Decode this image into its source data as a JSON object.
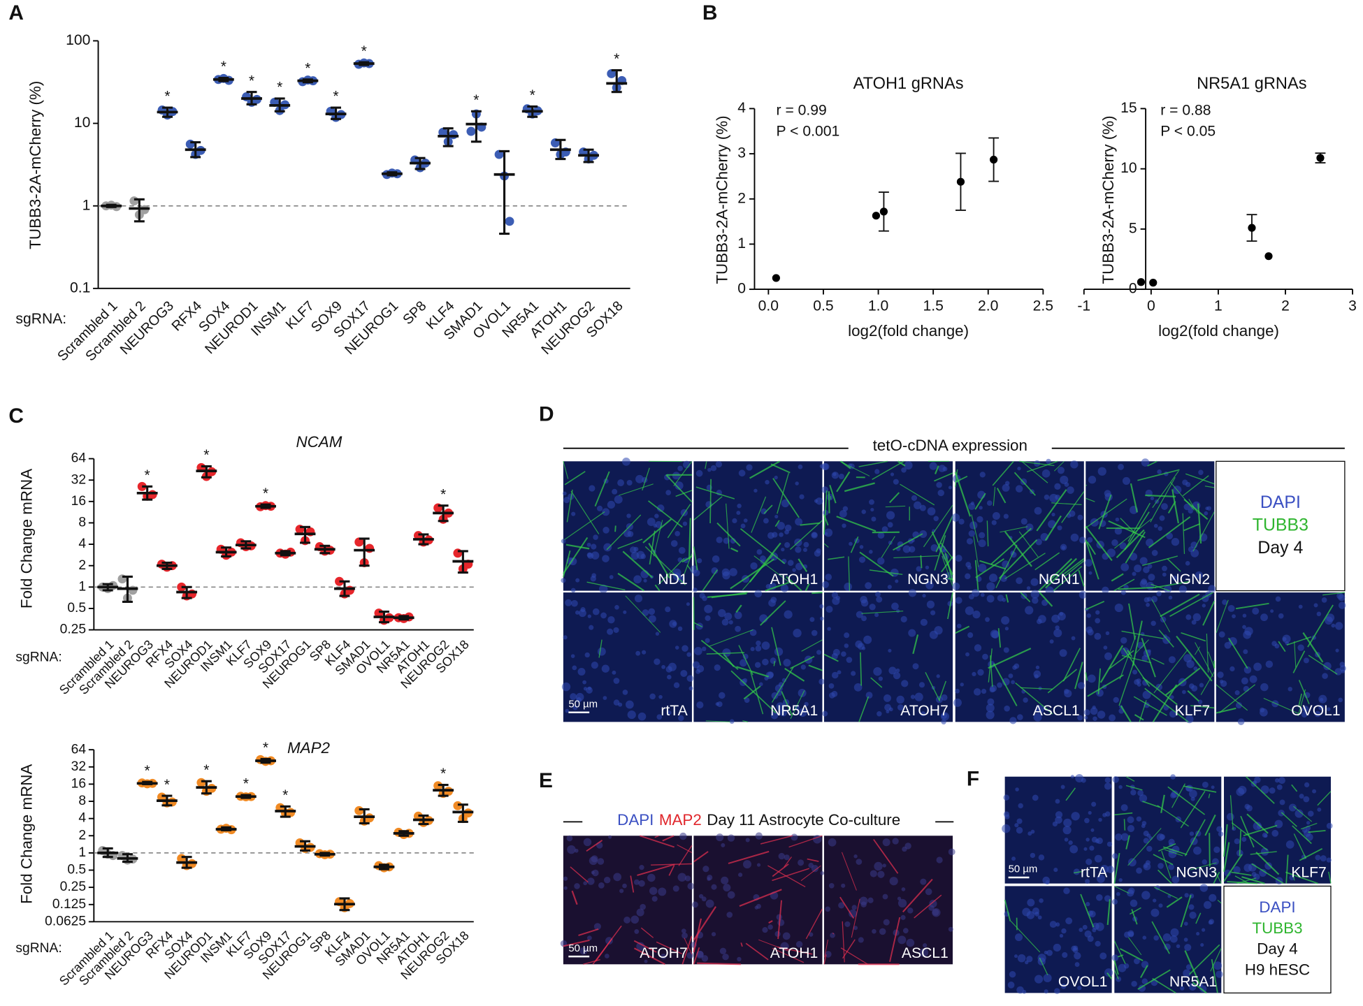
{
  "figure_panels": {
    "labels": [
      "A",
      "B",
      "C",
      "D",
      "E",
      "F"
    ],
    "D": {
      "header": "tetO-cDNA expression",
      "tiles": [
        "ND1",
        "ATOH1",
        "NGN3",
        "NGN1",
        "NGN2",
        "rtTA",
        "NR5A1",
        "ATOH7",
        "ASCL1",
        "KLF7",
        "OVOL1"
      ],
      "legend": [
        "DAPI",
        "TUBB3",
        "Day 4"
      ],
      "scale_bar": "50 µm"
    },
    "E": {
      "header": [
        "DAPI",
        "MAP2",
        "Day 11 Astrocyte Co-culture"
      ],
      "tiles": [
        "ATOH7",
        "ATOH1",
        "ASCL1"
      ],
      "scale_bar": "50 µm"
    },
    "F": {
      "tiles": [
        "rtTA",
        "NGN3",
        "KLF7",
        "OVOL1",
        "NR5A1"
      ],
      "legend": [
        "DAPI",
        "TUBB3",
        "Day 4",
        "H9 hESC"
      ],
      "scale_bar": "50 µm"
    }
  },
  "chart_data": [
    {
      "type": "dotplot",
      "ylabel": "TUBB3-2A-mCherry (%)",
      "xlabel": "sgRNA:",
      "scale": "log",
      "categories": [
        "Scrambled 1",
        "Scrambled 2",
        "NEUROG3",
        "RFX4",
        "SOX4",
        "NEUROD1",
        "INSM1",
        "KLF7",
        "SOX9",
        "SOX17",
        "NEUROG1",
        "SP8",
        "KLF4",
        "SMAD1",
        "OVOL1",
        "NR5A1",
        "ATOH1",
        "NEUROG2",
        "SOX18"
      ],
      "colors": [
        "#a0a0a0",
        "#a0a0a0",
        "#3c5db4",
        "#3c5db4",
        "#3c5db4",
        "#3c5db4",
        "#3c5db4",
        "#3c5db4",
        "#3c5db4",
        "#3c5db4",
        "#3c5db4",
        "#3c5db4",
        "#3c5db4",
        "#3c5db4",
        "#3c5db4",
        "#3c5db4",
        "#3c5db4",
        "#3c5db4",
        "#3c5db4"
      ],
      "points": [
        [
          1.0,
          1.02,
          0.98
        ],
        [
          1.15,
          0.78,
          0.9
        ],
        [
          14.5,
          12.6,
          13.9
        ],
        [
          5.6,
          4.2,
          4.7
        ],
        [
          34,
          35,
          33.2
        ],
        [
          21,
          18,
          19.5
        ],
        [
          18,
          14.3,
          16.8
        ],
        [
          32,
          33.5,
          32.8
        ],
        [
          14,
          11.8,
          12.8
        ],
        [
          52,
          54,
          53
        ],
        [
          2.4,
          2.5,
          2.45
        ],
        [
          3.6,
          2.9,
          3.3
        ],
        [
          7.8,
          6,
          7.3
        ],
        [
          8,
          13,
          9
        ],
        [
          4.2,
          2.3,
          0.65
        ],
        [
          15,
          13,
          14.2
        ],
        [
          5.8,
          4.2,
          4.5
        ],
        [
          4.5,
          3.7,
          4.1
        ],
        [
          40,
          27,
          33
        ]
      ],
      "means": [
        1.0,
        0.93,
        13.7,
        4.8,
        34,
        20,
        16.5,
        32.8,
        13,
        53,
        2.45,
        3.3,
        7,
        9.8,
        2.4,
        14,
        4.8,
        4.1,
        30.5
      ],
      "lower": [
        0.97,
        0.65,
        12,
        3.9,
        32.5,
        17,
        14,
        31.5,
        11.3,
        51,
        2.35,
        2.8,
        5.3,
        6,
        0.46,
        12,
        3.7,
        3.4,
        24
      ],
      "upper": [
        1.03,
        1.2,
        15.5,
        5.9,
        35.5,
        24,
        20,
        34,
        15.5,
        55,
        2.55,
        3.8,
        8.7,
        14,
        4.6,
        16,
        6.3,
        4.8,
        44
      ],
      "annotations": [
        null,
        null,
        "*",
        null,
        "*",
        "*",
        "*",
        "*",
        "*",
        "*",
        null,
        null,
        null,
        "*",
        null,
        "*",
        null,
        null,
        "*"
      ],
      "reference_line": 1,
      "ylim": [
        0.1,
        100
      ],
      "yticks": [
        0.1,
        1,
        10,
        100
      ]
    },
    {
      "type": "scatter",
      "title": "ATOH1 gRNAs",
      "annotations": [
        "r = 0.99",
        "P < 0.001"
      ],
      "xlabel": "log2(fold change)",
      "ylabel": "TUBB3-2A-mCherry (%)",
      "color": "#000000",
      "x": [
        0.07,
        0.98,
        1.05,
        1.75,
        2.05
      ],
      "values": [
        0.25,
        1.63,
        1.72,
        2.38,
        2.87
      ],
      "errors": [
        null,
        null,
        0.43,
        0.63,
        0.48
      ],
      "xlim": [
        0,
        2.5
      ],
      "xticks": [
        {
          "value": 0,
          "label": "0.0"
        },
        0.5,
        {
          "value": 1,
          "label": "1.0"
        },
        1.5,
        {
          "value": 2,
          "label": "2.0"
        },
        2.5
      ],
      "ylim": [
        0,
        4
      ],
      "yticks": [
        0,
        1,
        2,
        3,
        4
      ]
    },
    {
      "type": "scatter",
      "title": "NR5A1 gRNAs",
      "annotations": [
        "r = 0.88",
        "P < 0.05"
      ],
      "xlabel": "log2(fold change)",
      "ylabel": "TUBB3-2A-mCherry (%)",
      "color": "#000000",
      "x": [
        -0.15,
        0.03,
        1.5,
        1.75,
        2.52
      ],
      "values": [
        0.6,
        0.55,
        5.1,
        2.75,
        10.9
      ],
      "errors": [
        null,
        null,
        1.1,
        null,
        0.4
      ],
      "xlim": [
        -1,
        3
      ],
      "xticks": [
        -1,
        0,
        1,
        2,
        3
      ],
      "ylim": [
        0,
        15
      ],
      "yticks": [
        0,
        5,
        10,
        15
      ]
    },
    {
      "type": "dotplot",
      "title": "NCAM",
      "ylabel": "Fold Change mRNA",
      "xlabel": "sgRNA:",
      "scale": "log",
      "categories": [
        "Scrambled 1",
        "Scrambled 2",
        "NEUROG3",
        "RFX4",
        "SOX4",
        "NEUROD1",
        "INSM1",
        "KLF7",
        "SOX9",
        "SOX17",
        "NEUROG1",
        "SP8",
        "KLF4",
        "SMAD1",
        "OVOL1",
        "NR5A1",
        "ATOH1",
        "NEUROG2",
        "SOX18"
      ],
      "colors": [
        "#a0a0a0",
        "#a0a0a0",
        "#e6262b",
        "#e6262b",
        "#e6262b",
        "#e6262b",
        "#e6262b",
        "#e6262b",
        "#e6262b",
        "#e6262b",
        "#e6262b",
        "#e6262b",
        "#e6262b",
        "#e6262b",
        "#e6262b",
        "#e6262b",
        "#e6262b",
        "#e6262b",
        "#e6262b"
      ],
      "points": [
        [
          1.0,
          0.95,
          1.05
        ],
        [
          1.3,
          0.7,
          0.9
        ],
        [
          26,
          19,
          20
        ],
        [
          2.1,
          1.9,
          2.0
        ],
        [
          1.0,
          0.75,
          0.8
        ],
        [
          48,
          36,
          42
        ],
        [
          3.4,
          2.8,
          3.1
        ],
        [
          4.2,
          3.7,
          3.8
        ],
        [
          13.5,
          14,
          13.7
        ],
        [
          3.0,
          2.9,
          3.1
        ],
        [
          6.5,
          4.5,
          6.0
        ],
        [
          3.7,
          3.2,
          3.3
        ],
        [
          1.2,
          0.8,
          0.9
        ],
        [
          4.3,
          2.2,
          3.5
        ],
        [
          0.43,
          0.34,
          0.37
        ],
        [
          0.37,
          0.36,
          0.38
        ],
        [
          5.3,
          4.3,
          4.6
        ],
        [
          13,
          9,
          11
        ],
        [
          3.0,
          1.8,
          2.1
        ]
      ],
      "means": [
        1.0,
        0.95,
        21,
        2.0,
        0.85,
        43,
        3.1,
        3.9,
        13.7,
        3.0,
        5.6,
        3.4,
        0.95,
        3.3,
        0.38,
        0.37,
        4.7,
        11,
        2.3
      ],
      "lower": [
        0.9,
        0.62,
        17,
        1.8,
        0.7,
        35,
        2.7,
        3.5,
        13,
        2.8,
        4.2,
        3.0,
        0.75,
        2.0,
        0.32,
        0.35,
        4.0,
        8.5,
        1.6
      ],
      "upper": [
        1.1,
        1.4,
        26,
        2.2,
        1.0,
        50,
        3.6,
        4.4,
        14.5,
        3.2,
        7,
        3.8,
        1.2,
        4.8,
        0.45,
        0.39,
        5.5,
        14,
        3.2
      ],
      "annotations": [
        null,
        null,
        "*",
        null,
        null,
        "*",
        null,
        null,
        "*",
        null,
        null,
        null,
        null,
        null,
        null,
        null,
        null,
        "*",
        null
      ],
      "reference_line": 1,
      "ylim": [
        0.25,
        64
      ],
      "yticks": [
        0.25,
        0.5,
        1,
        2,
        4,
        8,
        16,
        32,
        64
      ]
    },
    {
      "type": "dotplot",
      "title": "MAP2",
      "ylabel": "Fold Change mRNA",
      "xlabel": "sgRNA:",
      "scale": "log",
      "categories": [
        "Scrambled 1",
        "Scrambled 2",
        "NEUROG3",
        "RFX4",
        "SOX4",
        "NEUROD1",
        "INSM1",
        "KLF7",
        "SOX9",
        "SOX17",
        "NEUROG1",
        "SP8",
        "KLF4",
        "SMAD1",
        "OVOL1",
        "NR5A1",
        "ATOH1",
        "NEUROG2",
        "SOX18"
      ],
      "colors": [
        "#a0a0a0",
        "#a0a0a0",
        "#f08a24",
        "#f08a24",
        "#f08a24",
        "#f08a24",
        "#f08a24",
        "#f08a24",
        "#f08a24",
        "#f08a24",
        "#f08a24",
        "#f08a24",
        "#f08a24",
        "#f08a24",
        "#f08a24",
        "#f08a24",
        "#f08a24",
        "#f08a24",
        "#f08a24"
      ],
      "points": [
        [
          1.1,
          0.95,
          0.9
        ],
        [
          0.9,
          0.75,
          0.78
        ],
        [
          16.8,
          16.2,
          16.5
        ],
        [
          9.5,
          7.5,
          7.8
        ],
        [
          0.8,
          0.6,
          0.65
        ],
        [
          17,
          12,
          13.5
        ],
        [
          2.6,
          2.7,
          2.55
        ],
        [
          9.8,
          9.6,
          9.7
        ],
        [
          43,
          40,
          41
        ],
        [
          6.2,
          5,
          5.1
        ],
        [
          1.5,
          1.2,
          1.25
        ],
        [
          0.97,
          0.93,
          0.95
        ],
        [
          0.14,
          0.11,
          0.13
        ],
        [
          5.5,
          3.6,
          4.1
        ],
        [
          0.6,
          0.55,
          0.57
        ],
        [
          2.3,
          2.1,
          2.2
        ],
        [
          4.4,
          3.4,
          3.7
        ],
        [
          15,
          11,
          12
        ],
        [
          6.7,
          4,
          5
        ]
      ],
      "means": [
        1.0,
        0.8,
        16.5,
        8.2,
        0.68,
        14,
        2.6,
        9.7,
        41,
        5.4,
        1.3,
        0.95,
        0.127,
        4.3,
        0.57,
        2.2,
        3.8,
        12.5,
        5.2
      ],
      "lower": [
        0.85,
        0.7,
        16,
        6.8,
        0.55,
        11,
        2.5,
        9.2,
        38,
        4.3,
        1.1,
        0.9,
        0.1,
        3.3,
        0.52,
        2.0,
        3.2,
        10,
        3.5
      ],
      "upper": [
        1.2,
        0.95,
        17.5,
        10,
        0.85,
        18,
        2.8,
        10.3,
        44,
        6.5,
        1.6,
        1.0,
        0.16,
        5.8,
        0.62,
        2.4,
        4.5,
        15.5,
        7
      ],
      "annotations": [
        null,
        null,
        "*",
        "*",
        null,
        "*",
        null,
        "*",
        "*",
        "*",
        null,
        null,
        null,
        null,
        null,
        null,
        null,
        "*",
        null
      ],
      "reference_line": 1,
      "ylim": [
        0.0625,
        64
      ],
      "yticks": [
        0.0625,
        0.125,
        0.25,
        0.5,
        1,
        2,
        4,
        8,
        16,
        32,
        64
      ]
    }
  ]
}
